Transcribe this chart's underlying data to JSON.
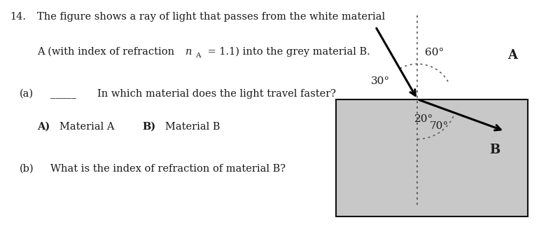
{
  "fig_width": 7.7,
  "fig_height": 3.34,
  "dpi": 100,
  "text_color": "#1a1a1a",
  "background_color": "#ffffff",
  "grey_material_color": "#c8c8c8",
  "grey_material_border": "#111111",
  "ray_color": "#000000",
  "angle_arc_color": "#555555",
  "question_number": "14.",
  "line1": "The figure shows a ray of light that passes from the white material",
  "line2": "A (with index of refraction ",
  "line2_italic": "n",
  "line2_sub": "A",
  "line2_end": " = 1.1) into the grey material B.",
  "part_a_label": "(a)",
  "part_a_blank": "_____",
  "part_a_text": "In which material does the light travel faster?",
  "part_b_label": "(b)",
  "part_b_text": "What is the index of refraction of material B?",
  "label_A": "A",
  "label_B": "B",
  "angle_60": "60°",
  "angle_30": "30°",
  "angle_70": "70°",
  "angle_20": "20°",
  "choice_A_bold": "A)",
  "choice_A_text": "Material A",
  "choice_B_bold": "B)",
  "choice_B_text": "Material B"
}
